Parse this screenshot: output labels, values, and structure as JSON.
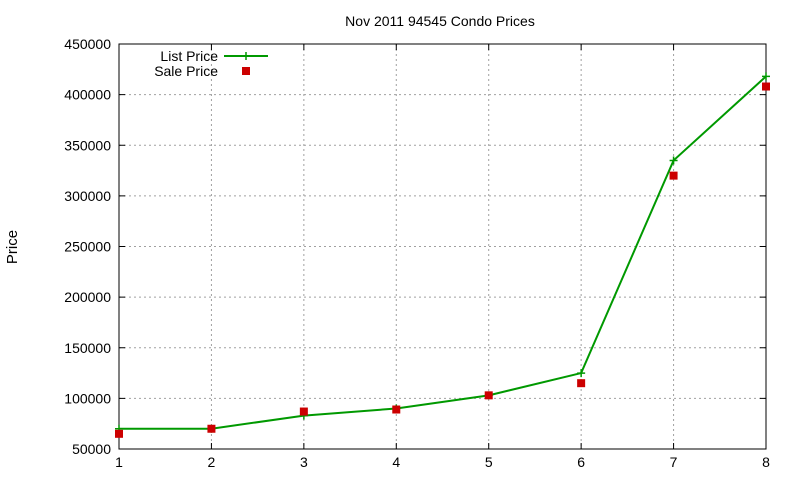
{
  "chart_data": {
    "type": "line",
    "title": "Nov 2011 94545 Condo Prices",
    "xlabel": "",
    "ylabel": "Price",
    "xlim": [
      1,
      8
    ],
    "ylim": [
      50000,
      450000
    ],
    "x_ticks": [
      1,
      2,
      3,
      4,
      5,
      6,
      7,
      8
    ],
    "y_ticks": [
      50000,
      100000,
      150000,
      200000,
      250000,
      300000,
      350000,
      400000,
      450000
    ],
    "grid": true,
    "legend_position": "top-left",
    "x": [
      1,
      2,
      3,
      4,
      5,
      6,
      7,
      8
    ],
    "series": [
      {
        "name": "List Price",
        "style": "line-with-plus-markers",
        "color": "#009900",
        "values": [
          70000,
          70000,
          83000,
          90000,
          103000,
          125000,
          335000,
          418000
        ]
      },
      {
        "name": "Sale Price",
        "style": "square-points",
        "color": "#cc0000",
        "values": [
          65000,
          70000,
          87000,
          89000,
          103000,
          115000,
          320000,
          408000
        ]
      }
    ]
  }
}
